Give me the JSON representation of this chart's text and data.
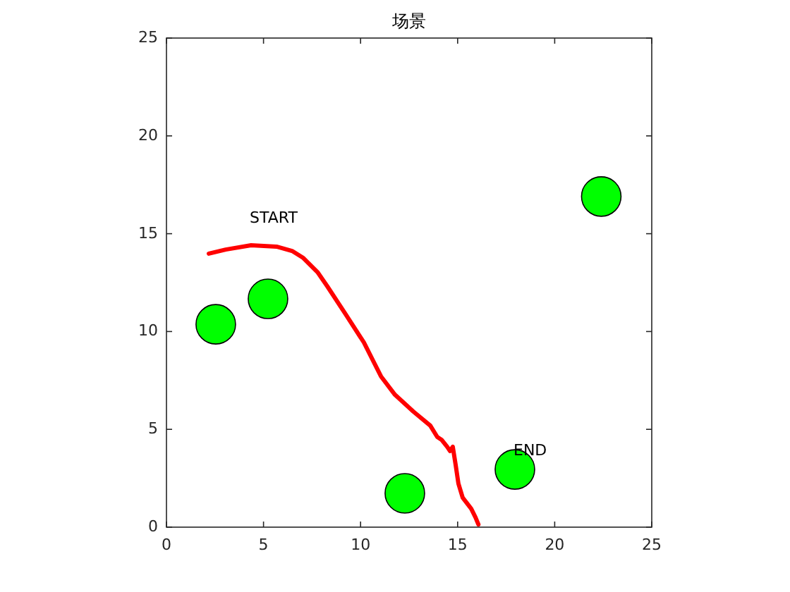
{
  "chart_data": {
    "type": "line",
    "title": "场景",
    "xlim": [
      0,
      25
    ],
    "ylim": [
      0,
      25
    ],
    "xticks": [
      0,
      5,
      10,
      15,
      20,
      25
    ],
    "yticks": [
      0,
      5,
      10,
      15,
      20,
      25
    ],
    "grid": false,
    "series": [
      {
        "type": "bubble",
        "color": "#00ff00",
        "x": [
          2.54,
          5.23,
          12.28,
          17.95,
          22.4
        ],
        "values": [
          10.37,
          11.67,
          1.73,
          2.95,
          16.9
        ],
        "sizes": [
          1,
          1,
          1,
          1,
          1
        ]
      },
      {
        "color": "#ff0000",
        "x": [
          2.18,
          3.05,
          4.36,
          5.67,
          6.47,
          7.05,
          7.78,
          8.28,
          9.23,
          10.17,
          11.05,
          11.77,
          12.72,
          13.59,
          13.95,
          14.17,
          14.46,
          14.61,
          14.75,
          14.9,
          15.04,
          15.26,
          15.7,
          15.92,
          16.07
        ],
        "values": [
          13.98,
          14.19,
          14.41,
          14.34,
          14.12,
          13.76,
          13.04,
          12.32,
          10.88,
          9.44,
          7.71,
          6.77,
          5.91,
          5.19,
          4.61,
          4.47,
          4.11,
          3.89,
          4.11,
          3.17,
          2.23,
          1.51,
          0.94,
          0.5,
          0.14
        ]
      }
    ],
    "annotations": [
      "START",
      "END"
    ]
  }
}
